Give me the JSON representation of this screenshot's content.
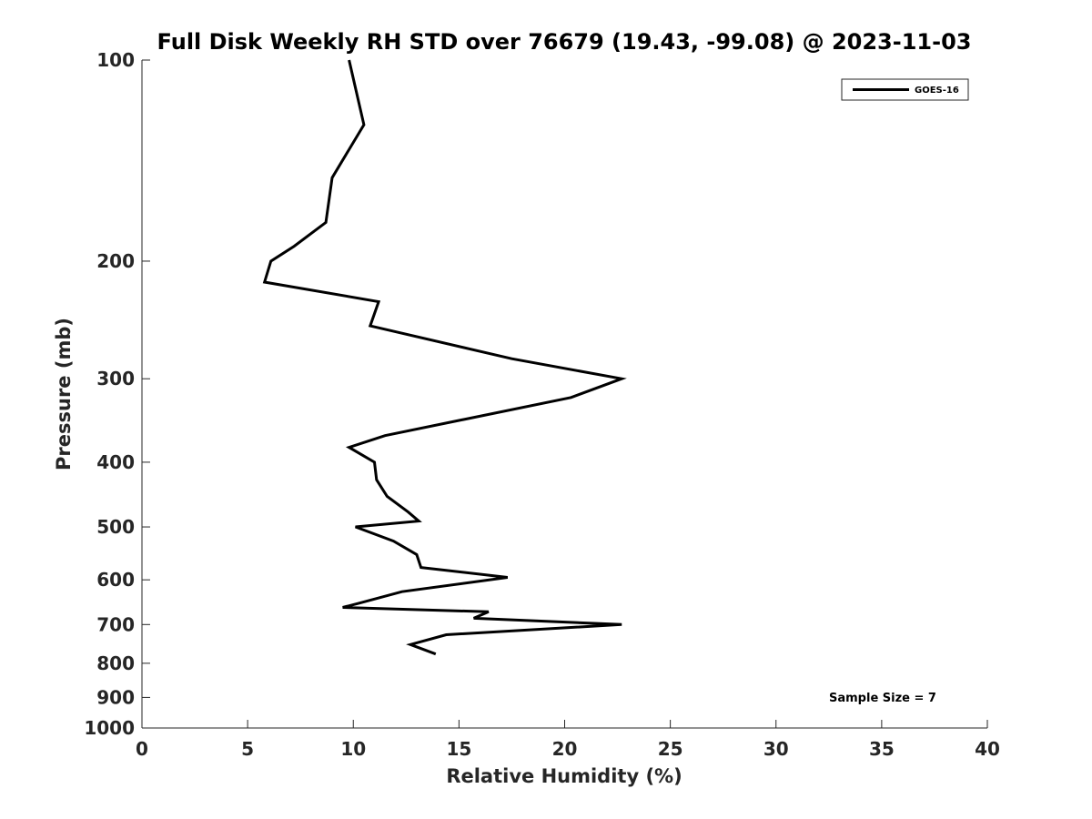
{
  "chart_data": {
    "type": "line",
    "title": "Full Disk Weekly RH STD over 76679 (19.43, -99.08) @ 2023-11-03",
    "xlabel": "Relative Humidity (%)",
    "ylabel": "Pressure (mb)",
    "xlim": [
      0,
      40
    ],
    "ylim": [
      100,
      1000
    ],
    "yscale": "log",
    "yreversed": true,
    "grid": false,
    "x_ticks": [
      "0",
      "5",
      "10",
      "15",
      "20",
      "25",
      "30",
      "35",
      "40"
    ],
    "y_ticks": [
      "100",
      "200",
      "300",
      "400",
      "500",
      "600",
      "700",
      "800",
      "900",
      "1000"
    ],
    "legend_position": "top-right",
    "annotation": "Sample Size = 7",
    "series": [
      {
        "name": "GOES-16",
        "color": "#000000",
        "points": [
          [
            9.8,
            100
          ],
          [
            10.5,
            125
          ],
          [
            9.0,
            150
          ],
          [
            8.7,
            175
          ],
          [
            7.2,
            190
          ],
          [
            6.1,
            200
          ],
          [
            5.8,
            215
          ],
          [
            11.2,
            230
          ],
          [
            10.8,
            250
          ],
          [
            17.5,
            280
          ],
          [
            22.7,
            300
          ],
          [
            20.3,
            320
          ],
          [
            11.5,
            365
          ],
          [
            9.8,
            380
          ],
          [
            11.0,
            400
          ],
          [
            11.1,
            425
          ],
          [
            11.6,
            450
          ],
          [
            12.6,
            475
          ],
          [
            13.1,
            490
          ],
          [
            10.1,
            500
          ],
          [
            11.9,
            525
          ],
          [
            13.0,
            550
          ],
          [
            13.2,
            575
          ],
          [
            17.3,
            595
          ],
          [
            12.3,
            625
          ],
          [
            10.3,
            650
          ],
          [
            9.5,
            660
          ],
          [
            16.4,
            670
          ],
          [
            15.7,
            685
          ],
          [
            22.7,
            700
          ],
          [
            14.4,
            725
          ],
          [
            12.7,
            750
          ],
          [
            13.9,
            775
          ]
        ]
      }
    ]
  }
}
